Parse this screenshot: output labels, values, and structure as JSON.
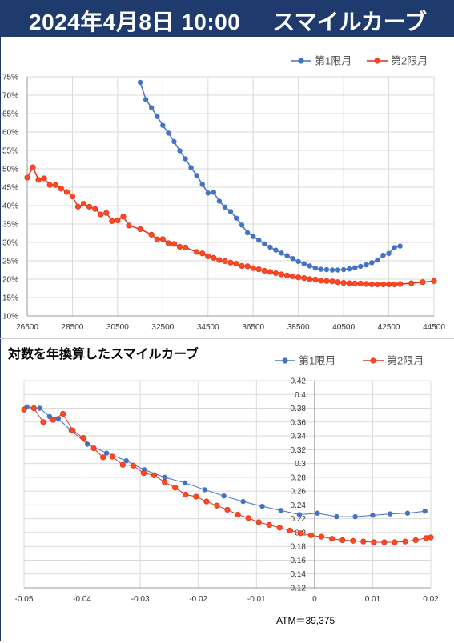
{
  "header": {
    "date": "2024年4月8日 10:00",
    "title": "スマイルカーブ"
  },
  "colors": {
    "header_bg": "#1f3a6d",
    "series1": "#4472c4",
    "series2_line": "#e03020",
    "series2_fill": "#ff4a1c",
    "grid": "#d9d9d9"
  },
  "chart_data": [
    {
      "type": "line",
      "title": "",
      "xlim": [
        26500,
        44500
      ],
      "ylim": [
        0.1,
        0.75
      ],
      "x_ticks": [
        26500,
        28500,
        30500,
        32500,
        34500,
        36500,
        38500,
        40500,
        42500,
        44500
      ],
      "x_tick_labels": [
        "26500",
        "28500",
        "30500",
        "32500",
        "34500",
        "36500",
        "38500",
        "40500",
        "42500",
        "44500"
      ],
      "y_ticks": [
        0.1,
        0.15,
        0.2,
        0.25,
        0.3,
        0.35,
        0.4,
        0.45,
        0.5,
        0.55,
        0.6,
        0.65,
        0.7,
        0.75
      ],
      "y_tick_labels": [
        "10%",
        "15%",
        "20%",
        "25%",
        "30%",
        "35%",
        "40%",
        "45%",
        "50%",
        "55%",
        "60%",
        "65%",
        "70%",
        "75%"
      ],
      "grid": true,
      "legend_position": "top-right",
      "series": [
        {
          "name": "第1限月",
          "x": [
            31500,
            31750,
            32000,
            32250,
            32500,
            32750,
            33000,
            33250,
            33500,
            33750,
            34000,
            34250,
            34500,
            34750,
            35000,
            35250,
            35500,
            35750,
            36000,
            36250,
            36500,
            36750,
            37000,
            37250,
            37500,
            37750,
            38000,
            38250,
            38500,
            38750,
            39000,
            39250,
            39500,
            39750,
            40000,
            40250,
            40500,
            40750,
            41000,
            41250,
            41500,
            41750,
            42000,
            42250,
            42500,
            42750,
            43000
          ],
          "y": [
            0.735,
            0.688,
            0.666,
            0.642,
            0.618,
            0.597,
            0.574,
            0.549,
            0.527,
            0.503,
            0.482,
            0.458,
            0.434,
            0.436,
            0.412,
            0.396,
            0.384,
            0.366,
            0.347,
            0.326,
            0.316,
            0.306,
            0.296,
            0.287,
            0.279,
            0.271,
            0.264,
            0.256,
            0.248,
            0.242,
            0.236,
            0.23,
            0.227,
            0.226,
            0.225,
            0.225,
            0.226,
            0.228,
            0.231,
            0.235,
            0.239,
            0.245,
            0.252,
            0.265,
            0.27,
            0.286,
            0.29
          ]
        },
        {
          "name": "第2限月",
          "x": [
            26500,
            26750,
            27000,
            27250,
            27500,
            27750,
            28000,
            28250,
            28500,
            28750,
            29000,
            29250,
            29500,
            29750,
            30000,
            30250,
            30500,
            30750,
            31000,
            31500,
            32000,
            32250,
            32500,
            32750,
            33000,
            33250,
            33500,
            34000,
            34250,
            34500,
            34750,
            35000,
            35250,
            35500,
            35750,
            36000,
            36250,
            36500,
            36750,
            37000,
            37250,
            37500,
            37750,
            38000,
            38250,
            38500,
            38750,
            39000,
            39250,
            39500,
            39750,
            40000,
            40250,
            40500,
            40750,
            41000,
            41250,
            41500,
            41750,
            42000,
            42250,
            42500,
            42750,
            43000,
            43500,
            44000,
            44500
          ],
          "y": [
            0.476,
            0.504,
            0.47,
            0.474,
            0.456,
            0.456,
            0.446,
            0.437,
            0.425,
            0.397,
            0.405,
            0.397,
            0.391,
            0.376,
            0.38,
            0.358,
            0.36,
            0.37,
            0.346,
            0.336,
            0.321,
            0.308,
            0.309,
            0.298,
            0.296,
            0.288,
            0.286,
            0.274,
            0.27,
            0.262,
            0.258,
            0.252,
            0.249,
            0.245,
            0.242,
            0.236,
            0.235,
            0.23,
            0.227,
            0.223,
            0.22,
            0.216,
            0.213,
            0.21,
            0.208,
            0.205,
            0.203,
            0.2,
            0.199,
            0.196,
            0.195,
            0.194,
            0.192,
            0.19,
            0.189,
            0.188,
            0.188,
            0.187,
            0.186,
            0.186,
            0.186,
            0.186,
            0.186,
            0.187,
            0.189,
            0.192,
            0.195
          ]
        }
      ]
    },
    {
      "type": "line",
      "title": "対数を年換算したスマイルカーブ",
      "xlim": [
        -0.05,
        0.02
      ],
      "ylim": [
        0.12,
        0.42
      ],
      "x_ticks": [
        -0.05,
        -0.04,
        -0.03,
        -0.02,
        -0.01,
        0,
        0.01,
        0.02
      ],
      "x_tick_labels": [
        "-0.05",
        "-0.04",
        "-0.03",
        "-0.02",
        "-0.01",
        "0",
        "0.01",
        "0.02"
      ],
      "y_ticks": [
        0.12,
        0.14,
        0.16,
        0.18,
        0.2,
        0.22,
        0.24,
        0.26,
        0.28,
        0.3,
        0.32,
        0.34,
        0.36,
        0.38,
        0.4,
        0.42
      ],
      "y_tick_labels": [
        "0.12",
        "0.14",
        "0.16",
        "0.18",
        "0.2",
        "0.22",
        "0.24",
        "0.26",
        "0.28",
        "0.3",
        "0.32",
        "0.34",
        "0.36",
        "0.38",
        "0.4",
        "0.42"
      ],
      "grid": true,
      "legend_position": "top-right",
      "annotation": "ATM＝39,375",
      "series": [
        {
          "name": "第1限月",
          "x": [
            -0.0495,
            -0.0473,
            -0.0456,
            -0.0441,
            -0.0419,
            -0.0391,
            -0.0358,
            -0.0324,
            -0.0293,
            -0.0258,
            -0.0223,
            -0.0189,
            -0.0156,
            -0.0123,
            -0.009,
            -0.0058,
            -0.0026,
            0.0005,
            0.0038,
            0.007,
            0.01,
            0.013,
            0.016,
            0.019
          ],
          "y": [
            0.382,
            0.38,
            0.368,
            0.365,
            0.348,
            0.328,
            0.315,
            0.304,
            0.291,
            0.28,
            0.272,
            0.262,
            0.253,
            0.245,
            0.238,
            0.232,
            0.226,
            0.228,
            0.223,
            0.223,
            0.225,
            0.227,
            0.228,
            0.231
          ]
        },
        {
          "name": "第2限月",
          "x": [
            -0.05,
            -0.0483,
            -0.0467,
            -0.045,
            -0.0433,
            -0.0416,
            -0.0398,
            -0.038,
            -0.0364,
            -0.0348,
            -0.033,
            -0.0312,
            -0.0294,
            -0.0276,
            -0.0258,
            -0.024,
            -0.0222,
            -0.0204,
            -0.0186,
            -0.0168,
            -0.015,
            -0.0132,
            -0.0114,
            -0.0096,
            -0.0078,
            -0.006,
            -0.0042,
            -0.0024,
            -0.0006,
            0.0012,
            0.003,
            0.0048,
            0.0066,
            0.0084,
            0.0102,
            0.012,
            0.0138,
            0.0156,
            0.0174,
            0.0192,
            0.02
          ],
          "y": [
            0.378,
            0.38,
            0.36,
            0.363,
            0.372,
            0.348,
            0.337,
            0.322,
            0.309,
            0.31,
            0.298,
            0.297,
            0.286,
            0.283,
            0.273,
            0.265,
            0.255,
            0.252,
            0.245,
            0.239,
            0.233,
            0.226,
            0.221,
            0.215,
            0.211,
            0.207,
            0.203,
            0.199,
            0.196,
            0.194,
            0.191,
            0.189,
            0.188,
            0.187,
            0.186,
            0.186,
            0.186,
            0.187,
            0.189,
            0.192,
            0.193
          ]
        }
      ]
    }
  ]
}
